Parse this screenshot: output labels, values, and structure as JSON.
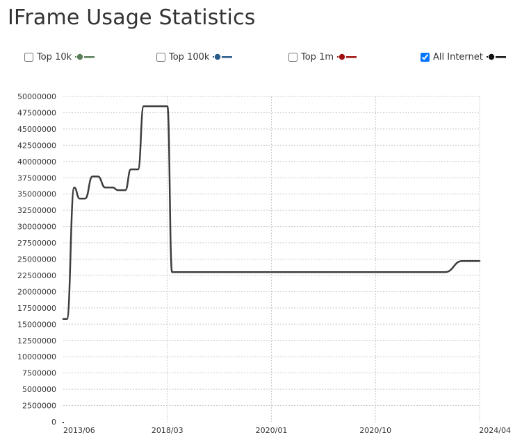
{
  "title": "IFrame Usage Statistics",
  "legend": [
    {
      "label": "Top 10k",
      "checked": false,
      "color": "#5a7d5a"
    },
    {
      "label": "Top 100k",
      "checked": false,
      "color": "#2a5a8a"
    },
    {
      "label": "Top 1m",
      "checked": false,
      "color": "#a01010"
    },
    {
      "label": "All Internet",
      "checked": true,
      "color": "#111111"
    }
  ],
  "chart_data": {
    "type": "line",
    "title": "IFrame Usage Statistics",
    "xlabel": "",
    "ylabel": "",
    "x_ticks": [
      "2013/06",
      "2018/03",
      "2020/01",
      "2020/10",
      "2024/04"
    ],
    "ylim": [
      0,
      50000000
    ],
    "y_ticks": [
      0,
      2500000,
      5000000,
      7500000,
      10000000,
      12500000,
      15000000,
      17500000,
      20000000,
      22500000,
      25000000,
      27500000,
      30000000,
      32500000,
      35000000,
      37500000,
      40000000,
      42500000,
      45000000,
      47500000,
      50000000
    ],
    "grid": true,
    "series": [
      {
        "name": "All Internet",
        "color": "#3d3d3d",
        "x": [
          "2013/06",
          "2013/08",
          "2013/12",
          "2014/03",
          "2014/06",
          "2014/10",
          "2015/01",
          "2015/05",
          "2015/09",
          "2015/12",
          "2016/04",
          "2016/07",
          "2016/11",
          "2017/02",
          "2017/05",
          "2017/09",
          "2017/12",
          "2018/03",
          "2018/04",
          "2018/05",
          "2018/07",
          "2018/08",
          "2018/09",
          "2018/10",
          "2018/11",
          "2018/12",
          "2019/01",
          "2019/02",
          "2019/03",
          "2019/04",
          "2019/05",
          "2019/06",
          "2019/07",
          "2019/08",
          "2019/09",
          "2019/10",
          "2019/11",
          "2019/12",
          "2020/01",
          "2020/02",
          "2020/03",
          "2020/04",
          "2020/05",
          "2020/06",
          "2020/07",
          "2020/08",
          "2020/09",
          "2020/10",
          "2021/05",
          "2021/12",
          "2022/07",
          "2023/02",
          "2023/09",
          "2024/04"
        ],
        "values": [
          15800000,
          15800000,
          36000000,
          34300000,
          34300000,
          37700000,
          37700000,
          36000000,
          36000000,
          35600000,
          35600000,
          38800000,
          38800000,
          48500000,
          48500000,
          48500000,
          48500000,
          48500000,
          23000000,
          23000000,
          23000000,
          23000000,
          23000000,
          23000000,
          23000000,
          23000000,
          23000000,
          23000000,
          23000000,
          23000000,
          23000000,
          23000000,
          23000000,
          23000000,
          23000000,
          23000000,
          23000000,
          23000000,
          23000000,
          23000000,
          23000000,
          23000000,
          23000000,
          23000000,
          23000000,
          23000000,
          23000000,
          23000000,
          23000000,
          23000000,
          23000000,
          23000000,
          24700000,
          24700000
        ]
      }
    ]
  }
}
